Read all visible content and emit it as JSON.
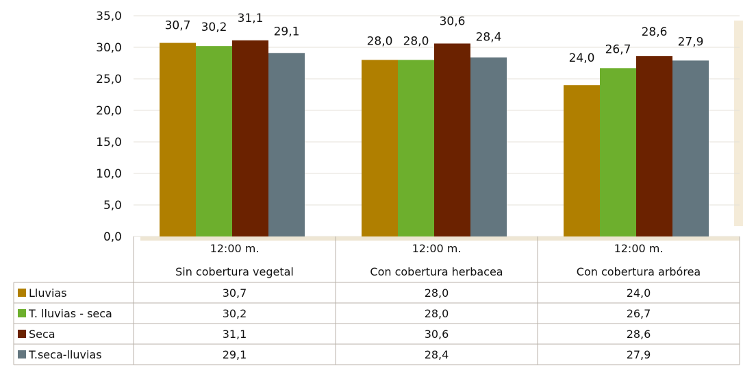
{
  "chart_data": {
    "type": "bar",
    "categories": [
      [
        "12:00 m.",
        "Sin cobertura vegetal"
      ],
      [
        "12:00 m.",
        "Con cobertura herbacea"
      ],
      [
        "12:00 m.",
        "Con cobertura arbórea"
      ]
    ],
    "series": [
      {
        "name": "Lluvias",
        "color": "#B07F00",
        "values": [
          30.7,
          28.0,
          24.0
        ],
        "labels": [
          "30,7",
          "28,0",
          "24,0"
        ]
      },
      {
        "name": "T. lluvias - seca",
        "color": "#6DAF2D",
        "values": [
          30.2,
          28.0,
          26.7
        ],
        "labels": [
          "30,2",
          "28,0",
          "26,7"
        ]
      },
      {
        "name": "Seca",
        "color": "#6B2200",
        "values": [
          31.1,
          30.6,
          28.6
        ],
        "labels": [
          "31,1",
          "30,6",
          "28,6"
        ]
      },
      {
        "name": "T.seca-lluvias",
        "color": "#63767F",
        "values": [
          29.1,
          28.4,
          27.9
        ],
        "labels": [
          "29,1",
          "28,4",
          "27,9"
        ]
      }
    ],
    "ylim": [
      0,
      35
    ],
    "yticks": [
      "0,0",
      "5,0",
      "10,0",
      "15,0",
      "20,0",
      "25,0",
      "30,0",
      "35,0"
    ],
    "grid": true,
    "legend": "data-table",
    "xlabel": "",
    "ylabel": "",
    "title": ""
  }
}
